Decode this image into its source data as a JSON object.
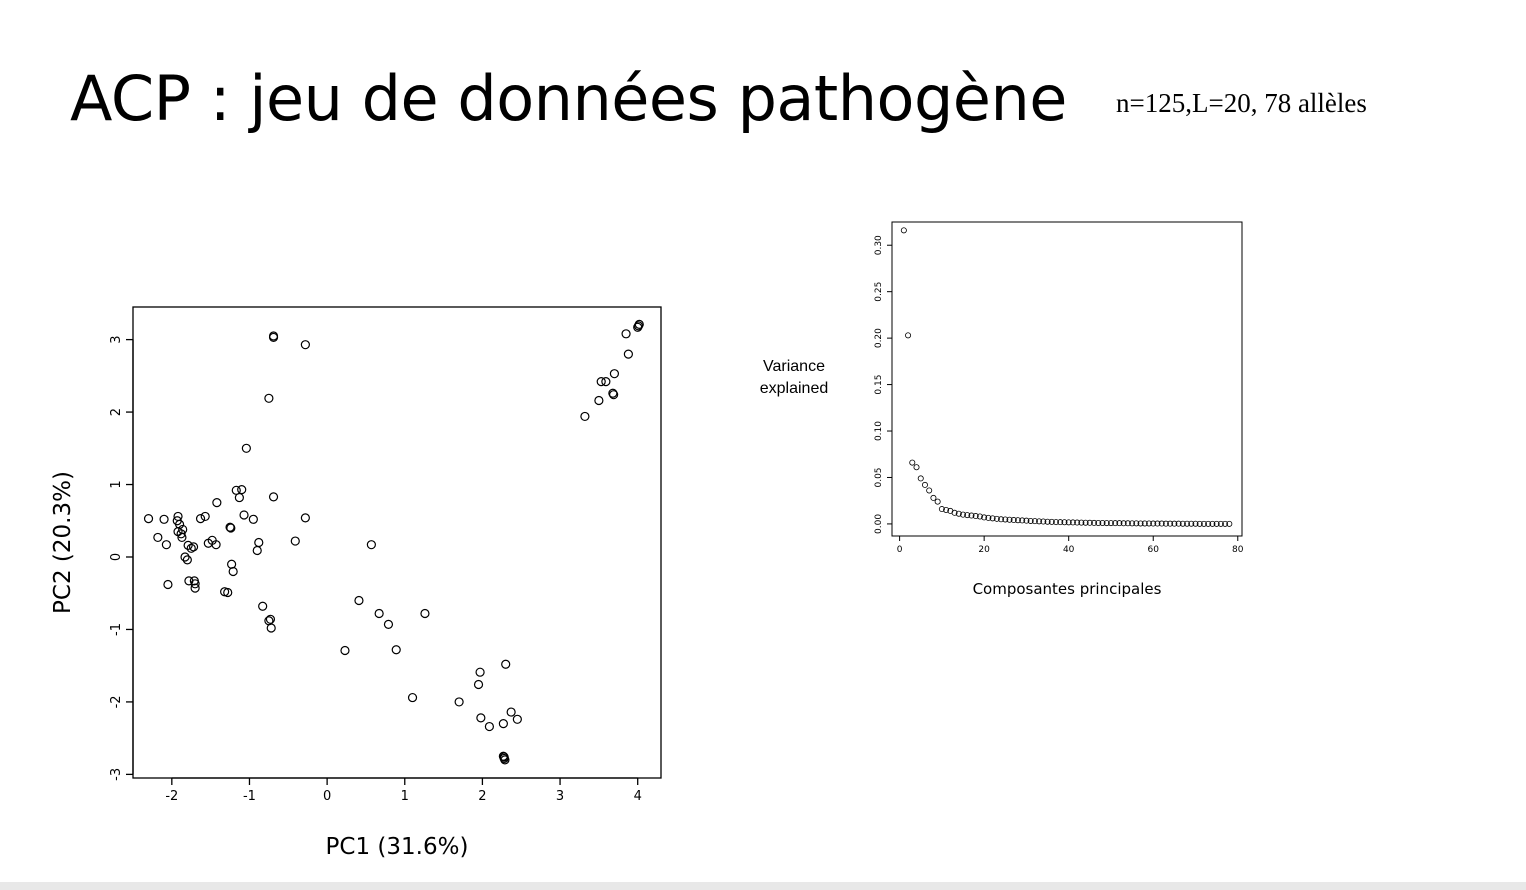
{
  "slide": {
    "title": "ACP : jeu de données pathogène",
    "subtitle": "n=125,L=20, 78 allèles",
    "side_label": [
      "Variance",
      "explained"
    ]
  },
  "chart_data": [
    {
      "type": "scatter",
      "xlabel": "PC1 (31.6%)",
      "ylabel": "PC2 (20.3%)",
      "xlim": [
        -2.5,
        4.3
      ],
      "ylim": [
        -3.05,
        3.45
      ],
      "xticks": [
        -2,
        -1,
        0,
        1,
        2,
        3,
        4
      ],
      "yticks": [
        -3,
        -2,
        -1,
        0,
        1,
        2,
        3
      ],
      "grid": false,
      "points": [
        [
          -2.3,
          0.53
        ],
        [
          -2.1,
          0.52
        ],
        [
          -2.18,
          0.27
        ],
        [
          -2.07,
          0.17
        ],
        [
          -2.05,
          -0.38
        ],
        [
          -1.93,
          0.5
        ],
        [
          -1.92,
          0.56
        ],
        [
          -1.9,
          0.45
        ],
        [
          -1.92,
          0.35
        ],
        [
          -1.88,
          0.32
        ],
        [
          -1.86,
          0.38
        ],
        [
          -1.87,
          0.27
        ],
        [
          -1.83,
          0.0
        ],
        [
          -1.8,
          -0.04
        ],
        [
          -1.79,
          0.16
        ],
        [
          -1.78,
          -0.33
        ],
        [
          -1.75,
          0.12
        ],
        [
          -1.72,
          0.14
        ],
        [
          -1.71,
          -0.33
        ],
        [
          -1.7,
          -0.37
        ],
        [
          -1.7,
          -0.43
        ],
        [
          -1.63,
          0.53
        ],
        [
          -1.57,
          0.56
        ],
        [
          -1.53,
          0.19
        ],
        [
          -1.48,
          0.23
        ],
        [
          -1.42,
          0.75
        ],
        [
          -1.43,
          0.17
        ],
        [
          -1.32,
          -0.48
        ],
        [
          -1.28,
          -0.49
        ],
        [
          -1.24,
          0.4
        ],
        [
          -1.25,
          0.41
        ],
        [
          -1.23,
          -0.1
        ],
        [
          -1.21,
          -0.2
        ],
        [
          -1.17,
          0.92
        ],
        [
          -1.13,
          0.82
        ],
        [
          -1.1,
          0.93
        ],
        [
          -1.07,
          0.58
        ],
        [
          -1.04,
          1.5
        ],
        [
          -0.95,
          0.52
        ],
        [
          -0.9,
          0.09
        ],
        [
          -0.88,
          0.2
        ],
        [
          -0.83,
          -0.68
        ],
        [
          -0.75,
          -0.88
        ],
        [
          -0.73,
          -0.86
        ],
        [
          -0.72,
          -0.98
        ],
        [
          -0.75,
          2.19
        ],
        [
          -0.69,
          3.03
        ],
        [
          -0.69,
          3.05
        ],
        [
          -0.69,
          0.83
        ],
        [
          -0.41,
          0.22
        ],
        [
          -0.28,
          2.93
        ],
        [
          -0.28,
          0.54
        ],
        [
          0.23,
          -1.29
        ],
        [
          0.41,
          -0.6
        ],
        [
          0.57,
          0.17
        ],
        [
          0.67,
          -0.78
        ],
        [
          0.79,
          -0.93
        ],
        [
          0.89,
          -1.28
        ],
        [
          1.1,
          -1.94
        ],
        [
          1.26,
          -0.78
        ],
        [
          1.7,
          -2.0
        ],
        [
          1.95,
          -1.76
        ],
        [
          1.97,
          -1.59
        ],
        [
          1.98,
          -2.22
        ],
        [
          2.09,
          -2.34
        ],
        [
          2.27,
          -2.3
        ],
        [
          2.3,
          -1.48
        ],
        [
          2.37,
          -2.14
        ],
        [
          2.45,
          -2.24
        ],
        [
          2.27,
          -2.75
        ],
        [
          2.28,
          -2.78
        ],
        [
          2.29,
          -2.8
        ],
        [
          2.28,
          -2.76
        ],
        [
          3.32,
          1.94
        ],
        [
          3.5,
          2.16
        ],
        [
          3.53,
          2.42
        ],
        [
          3.59,
          2.42
        ],
        [
          3.68,
          2.26
        ],
        [
          3.69,
          2.24
        ],
        [
          3.7,
          2.53
        ],
        [
          3.85,
          3.08
        ],
        [
          3.88,
          2.8
        ],
        [
          4.0,
          3.17
        ],
        [
          4.01,
          3.19
        ],
        [
          4.02,
          3.21
        ]
      ]
    },
    {
      "type": "scatter",
      "xlabel": "Composantes principales",
      "ylabel": "",
      "xlim": [
        -1.8,
        81
      ],
      "ylim": [
        -0.013,
        0.325
      ],
      "xticks": [
        0,
        20,
        40,
        60,
        80
      ],
      "yticks": [
        0.0,
        0.05,
        0.1,
        0.15,
        0.2,
        0.25,
        0.3
      ],
      "yticklabels": [
        "0.00",
        "0.05",
        "0.10",
        "0.15",
        "0.20",
        "0.25",
        "0.30"
      ],
      "grid": false,
      "values": [
        0.316,
        0.203,
        0.066,
        0.061,
        0.049,
        0.042,
        0.036,
        0.028,
        0.024,
        0.016,
        0.015,
        0.014,
        0.012,
        0.011,
        0.01,
        0.0095,
        0.009,
        0.0085,
        0.008,
        0.007,
        0.0065,
        0.006,
        0.0055,
        0.005,
        0.0048,
        0.0045,
        0.0042,
        0.004,
        0.0038,
        0.0035,
        0.0032,
        0.003,
        0.0028,
        0.0026,
        0.0024,
        0.0022,
        0.002,
        0.0019,
        0.0018,
        0.0017,
        0.0016,
        0.0015,
        0.0014,
        0.0013,
        0.0012,
        0.0011,
        0.001,
        0.001,
        0.0009,
        0.0009,
        0.0008,
        0.0008,
        0.0007,
        0.0007,
        0.0006,
        0.0006,
        0.0005,
        0.0005,
        0.0005,
        0.0004,
        0.0004,
        0.0004,
        0.0003,
        0.0003,
        0.0003,
        0.0003,
        0.0002,
        0.0002,
        0.0002,
        0.0002,
        0.0001,
        0.0001,
        0.0001,
        0.0001,
        0.0001,
        0.0001,
        0.0001,
        0.0001
      ]
    }
  ]
}
